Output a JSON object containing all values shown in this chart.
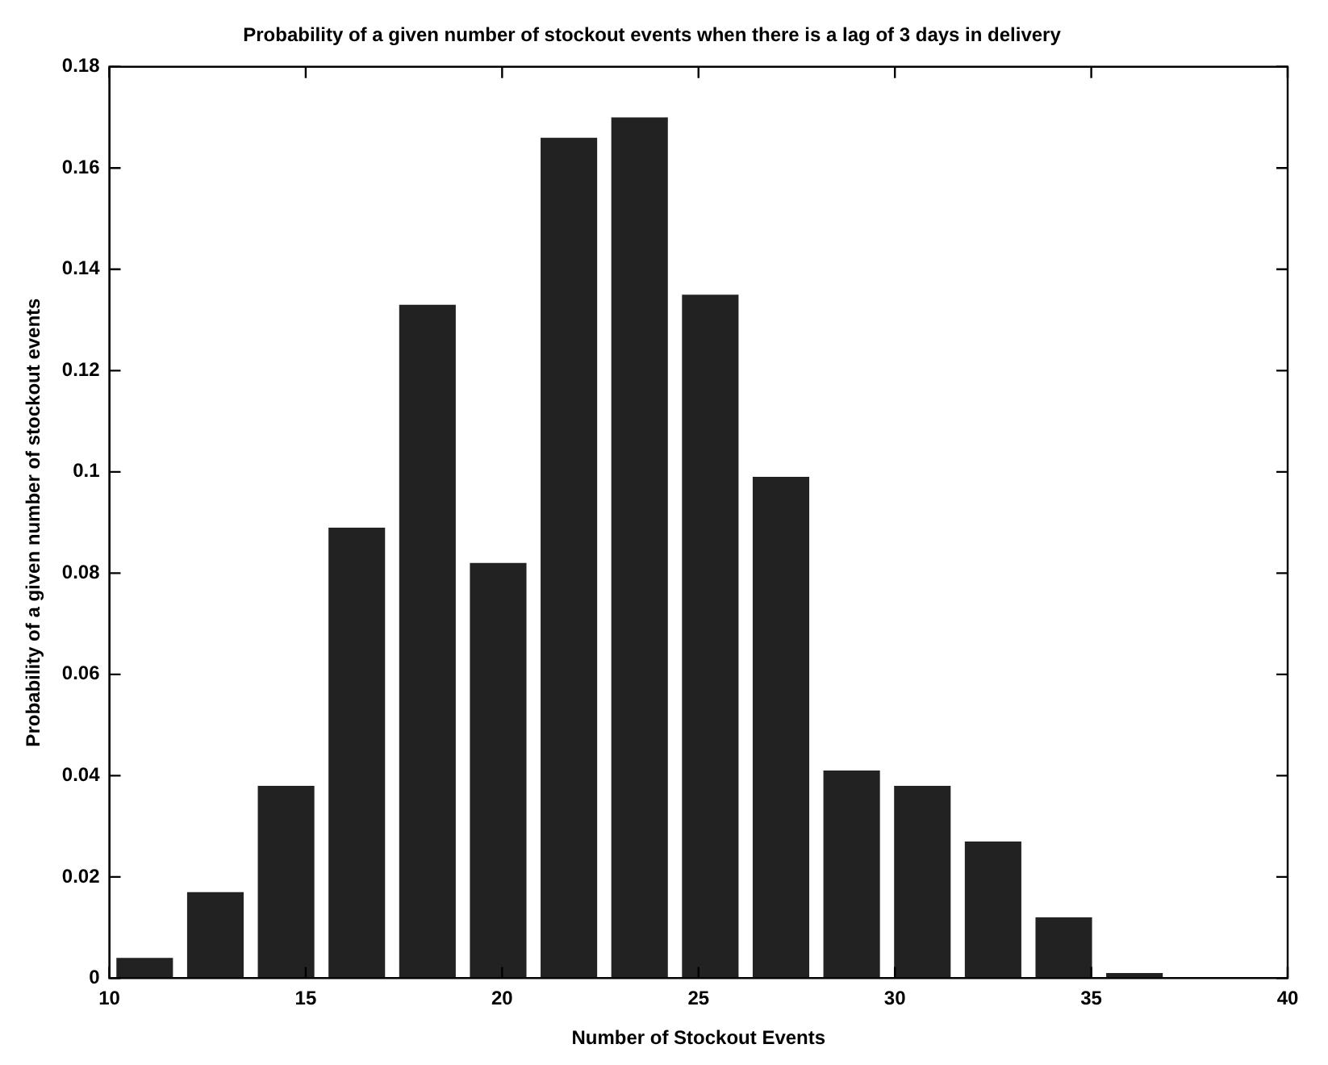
{
  "chart_data": {
    "type": "histogram",
    "title": "Probability of a given number of stockout events when there is a lag of 3 days in delivery",
    "xlabel": "Number of Stockout Events",
    "ylabel": "Probability of a given number of stockout events",
    "bins": [
      10,
      11.8,
      13.6,
      15.4,
      17.2,
      19,
      20.8,
      22.6,
      24.4,
      26.2,
      28,
      29.8,
      31.6,
      33.4,
      35.2,
      37
    ],
    "values": [
      0.004,
      0.017,
      0.038,
      0.089,
      0.133,
      0.082,
      0.166,
      0.17,
      0.135,
      0.099,
      0.041,
      0.038,
      0.027,
      0.012,
      0.001
    ],
    "color": "#222222",
    "xlim": [
      10,
      40
    ],
    "xticks": [
      10,
      15,
      20,
      25,
      30,
      35,
      40
    ],
    "ylim": [
      0,
      0.18
    ],
    "yticks": [
      0,
      0.02,
      0.04,
      0.06,
      0.08,
      0.1,
      0.12,
      0.14,
      0.16,
      0.18
    ],
    "grid": false,
    "legend": false
  }
}
